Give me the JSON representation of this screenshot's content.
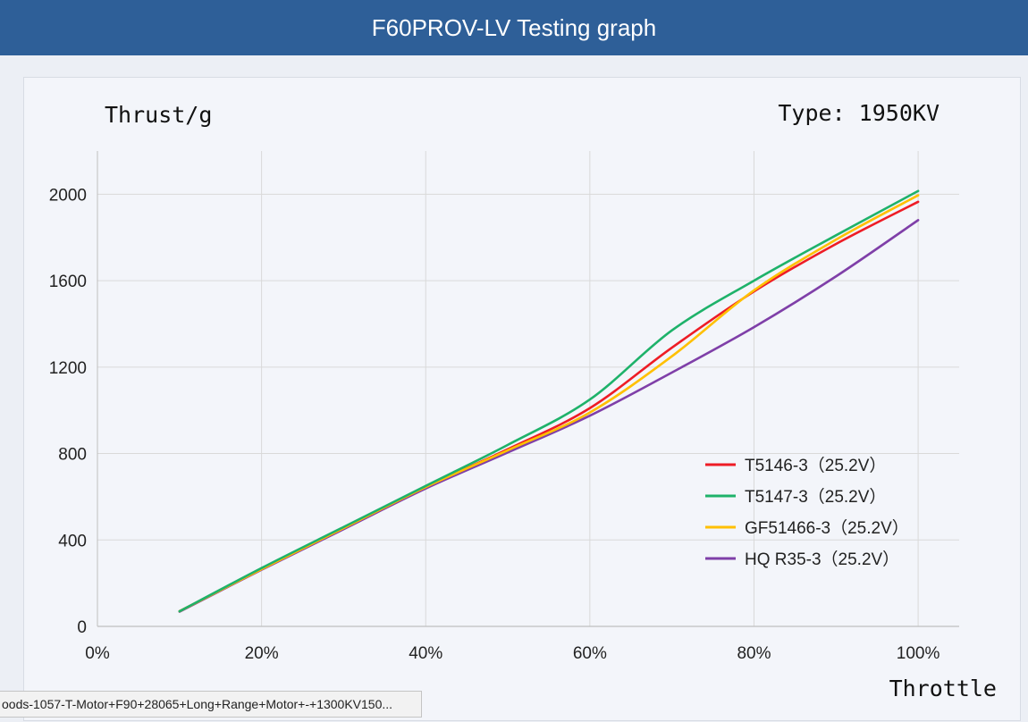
{
  "header": {
    "title": "F60PROV-LV Testing graph"
  },
  "status_bar": {
    "url": "oods-1057-T-Motor+F90+28065+Long+Range+Motor+-+1300KV150..."
  },
  "chart_data": {
    "type": "line",
    "ylabel": "Thrust/g",
    "xlabel": "Throttle",
    "annotation": "Type: 1950KV",
    "x": [
      10,
      20,
      30,
      40,
      50,
      60,
      70,
      80,
      90,
      100
    ],
    "xticks": [
      "0%",
      "20%",
      "40%",
      "60%",
      "80%",
      "100%"
    ],
    "xtick_values": [
      0,
      20,
      40,
      60,
      80,
      100
    ],
    "xlim": [
      0,
      105
    ],
    "ylim": [
      0,
      2200
    ],
    "yticks": [
      0,
      400,
      800,
      1200,
      1600,
      2000
    ],
    "grid": true,
    "legend_position": "lower-right",
    "series": [
      {
        "name": "T5146-3（25.2V）",
        "color": "#ee1c25",
        "values": [
          70,
          265,
          455,
          645,
          820,
          1010,
          1290,
          1550,
          1770,
          1965
        ]
      },
      {
        "name": "T5147-3（25.2V）",
        "color": "#1eb26a",
        "values": [
          70,
          270,
          460,
          650,
          840,
          1050,
          1370,
          1600,
          1810,
          2015
        ]
      },
      {
        "name": "GF51466-3（25.2V）",
        "color": "#ffc000",
        "values": [
          70,
          265,
          455,
          645,
          815,
          990,
          1250,
          1555,
          1790,
          1995
        ]
      },
      {
        "name": "HQ R35-3（25.2V）",
        "color": "#7f3fa8",
        "values": [
          68,
          262,
          450,
          638,
          805,
          975,
          1175,
          1385,
          1620,
          1880
        ]
      }
    ]
  }
}
